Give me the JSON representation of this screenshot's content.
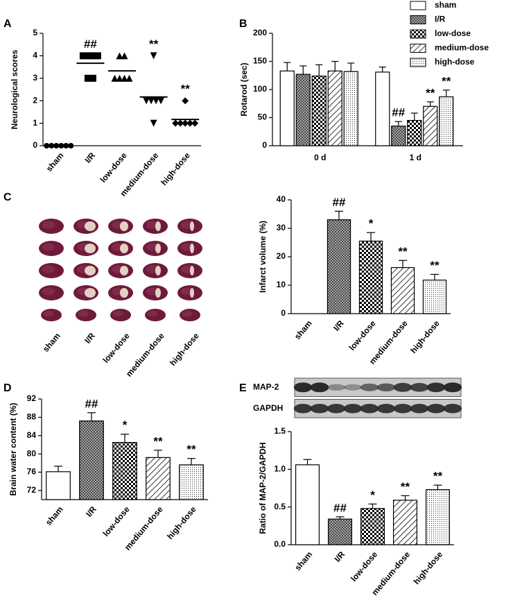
{
  "chart_data": [
    {
      "type": "dot",
      "panel": "A",
      "ylabel": "Neurological scores",
      "categories": [
        "sham",
        "I/R",
        "low-dose",
        "medium-dose",
        "high-dose"
      ],
      "points": [
        [
          0,
          0,
          0,
          0,
          0,
          0
        ],
        [
          4,
          4,
          4,
          4,
          3,
          3
        ],
        [
          4,
          4,
          3,
          3,
          3,
          3
        ],
        [
          4,
          2,
          2,
          2,
          2,
          1
        ],
        [
          2,
          1,
          1,
          1,
          1,
          1
        ]
      ],
      "means": [
        0,
        3.67,
        3.33,
        2.17,
        1.17
      ],
      "markers": [
        "circle",
        "square",
        "triangle",
        "triangle-down",
        "diamond"
      ],
      "annotations": [
        null,
        "##",
        null,
        "**",
        "**"
      ],
      "ylim": [
        0,
        5
      ],
      "yticks": [
        0,
        1,
        2,
        3,
        4,
        5
      ]
    },
    {
      "type": "grouped-bar",
      "panel": "B",
      "ylabel": "Rotarod (sec)",
      "categories": [
        "0 d",
        "1 d"
      ],
      "series": [
        {
          "name": "sham",
          "pattern": "none",
          "values": [
            133,
            131
          ],
          "errors": [
            15,
            9
          ],
          "annotations": [
            null,
            null
          ]
        },
        {
          "name": "I/R",
          "pattern": "crosshatch",
          "values": [
            127,
            35
          ],
          "errors": [
            15,
            8
          ],
          "annotations": [
            null,
            "##"
          ]
        },
        {
          "name": "low-dose",
          "pattern": "checker",
          "values": [
            124,
            45
          ],
          "errors": [
            20,
            13
          ],
          "annotations": [
            null,
            null
          ]
        },
        {
          "name": "medium-dose",
          "pattern": "hatch",
          "values": [
            133,
            70
          ],
          "errors": [
            17,
            8
          ],
          "annotations": [
            null,
            "**"
          ]
        },
        {
          "name": "high-dose",
          "pattern": "dots",
          "values": [
            132,
            87
          ],
          "errors": [
            15,
            12
          ],
          "annotations": [
            null,
            "**"
          ]
        }
      ],
      "ylim": [
        0,
        200
      ],
      "yticks": [
        0,
        50,
        100,
        150,
        200
      ],
      "legend": "top-right"
    },
    {
      "type": "image",
      "panel": "C",
      "categories": [
        "sham",
        "I/R",
        "low-dose",
        "medium-dose",
        "high-dose"
      ]
    },
    {
      "type": "bar",
      "ylabel": "Infarct volume (%)",
      "categories": [
        "sham",
        "I/R",
        "low-dose",
        "medium-dose",
        "high-dose"
      ],
      "values": [
        0,
        33,
        25.5,
        16.2,
        11.8
      ],
      "errors": [
        null,
        3,
        3,
        2.5,
        2
      ],
      "patterns": [
        "none",
        "crosshatch",
        "checker",
        "hatch",
        "dots"
      ],
      "annotations": [
        null,
        "##",
        "*",
        "**",
        "**"
      ],
      "ylim": [
        0,
        40
      ],
      "yticks": [
        0,
        10,
        20,
        30,
        40
      ]
    },
    {
      "type": "bar",
      "panel": "D",
      "ylabel": "Brain water content (%)",
      "categories": [
        "sham",
        "I/R",
        "low-dose",
        "medium-dose",
        "high-dose"
      ],
      "values": [
        76.1,
        87.2,
        82.5,
        79.2,
        77.6
      ],
      "errors": [
        1.2,
        1.8,
        1.8,
        1.6,
        1.4
      ],
      "patterns": [
        "none",
        "crosshatch",
        "checker",
        "hatch",
        "dots"
      ],
      "annotations": [
        null,
        "##",
        "*",
        "**",
        "**"
      ],
      "ylim": [
        70,
        92
      ],
      "yticks": [
        72,
        76,
        80,
        84,
        88,
        92
      ]
    },
    {
      "type": "blot",
      "panel": "E",
      "rows": [
        "MAP-2",
        "GAPDH"
      ]
    },
    {
      "type": "bar",
      "ylabel": "Ratio of MAP-2/GAPDH",
      "categories": [
        "sham",
        "I/R",
        "low-dose",
        "medium-dose",
        "high-dose"
      ],
      "values": [
        1.06,
        0.34,
        0.48,
        0.59,
        0.73
      ],
      "errors": [
        0.07,
        0.03,
        0.06,
        0.06,
        0.06
      ],
      "patterns": [
        "none",
        "crosshatch",
        "checker",
        "hatch",
        "dots"
      ],
      "annotations": [
        null,
        "##",
        "*",
        "**",
        "**"
      ],
      "ylim": [
        0,
        1.5
      ],
      "yticks": [
        {
          "value": 0,
          "label": "0.0"
        },
        {
          "value": 0.5,
          "label": "0.5"
        },
        {
          "value": 1,
          "label": "1.0"
        },
        {
          "value": 1.5,
          "label": "1.5"
        }
      ]
    }
  ]
}
